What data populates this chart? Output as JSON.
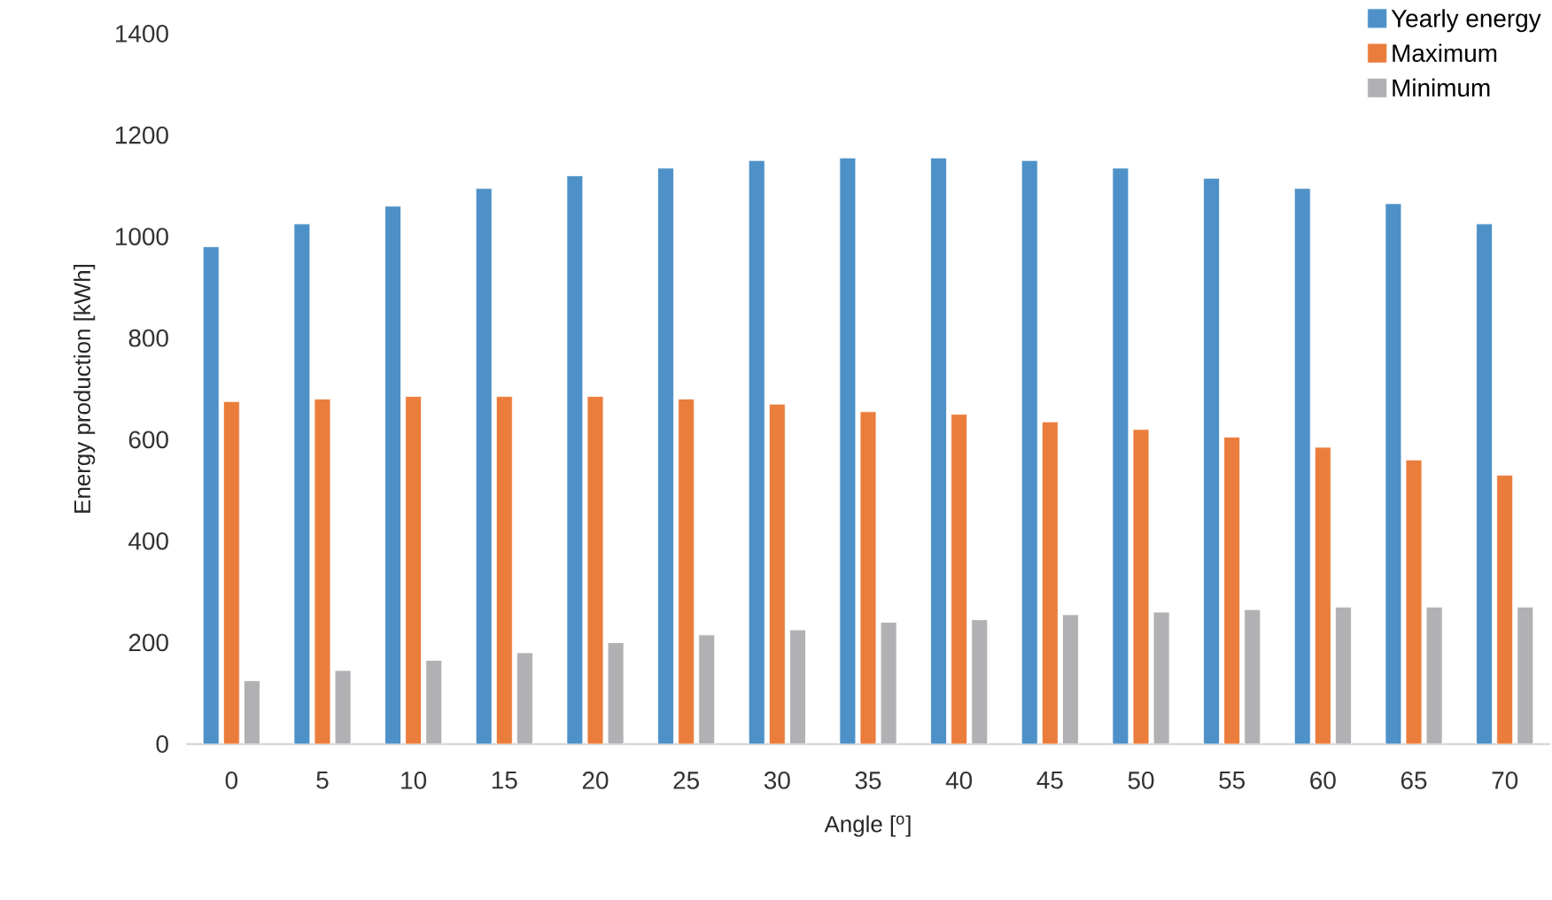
{
  "chart_data": {
    "type": "bar",
    "xlabel": "Angle [$^{o}$]",
    "ylabel": "Energy production [kWh]",
    "categories": [
      "0",
      "5",
      "10",
      "15",
      "20",
      "25",
      "30",
      "35",
      "40",
      "45",
      "50",
      "55",
      "60",
      "65",
      "70"
    ],
    "series": [
      {
        "name": "Yearly energy",
        "color": "#4e91c8",
        "values": [
          980,
          1025,
          1060,
          1095,
          1120,
          1135,
          1150,
          1155,
          1155,
          1150,
          1135,
          1115,
          1095,
          1065,
          1025
        ]
      },
      {
        "name": "Maximum",
        "color": "#eb7d3c",
        "values": [
          675,
          680,
          685,
          685,
          685,
          680,
          670,
          655,
          650,
          635,
          620,
          605,
          585,
          560,
          530
        ]
      },
      {
        "name": "Minimum",
        "color": "#b1b1b4",
        "values": [
          125,
          145,
          165,
          180,
          200,
          215,
          225,
          240,
          245,
          255,
          260,
          265,
          270,
          270,
          270
        ]
      }
    ],
    "ylim": [
      0,
      1400
    ],
    "yticks": [
      0,
      200,
      400,
      600,
      800,
      1000,
      1200,
      1400
    ],
    "legend": "top right"
  }
}
